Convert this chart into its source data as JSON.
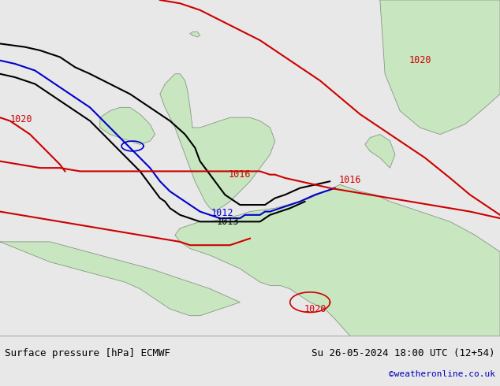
{
  "title_left": "Surface pressure [hPa] ECMWF",
  "title_right": "Su 26-05-2024 18:00 UTC (12+54)",
  "watermark": "©weatheronline.co.uk",
  "bg_color": "#d8dde0",
  "land_color": "#c8e6c0",
  "coast_color": "#888888",
  "font_size_bottom": 9,
  "watermark_color": "#0000bb"
}
